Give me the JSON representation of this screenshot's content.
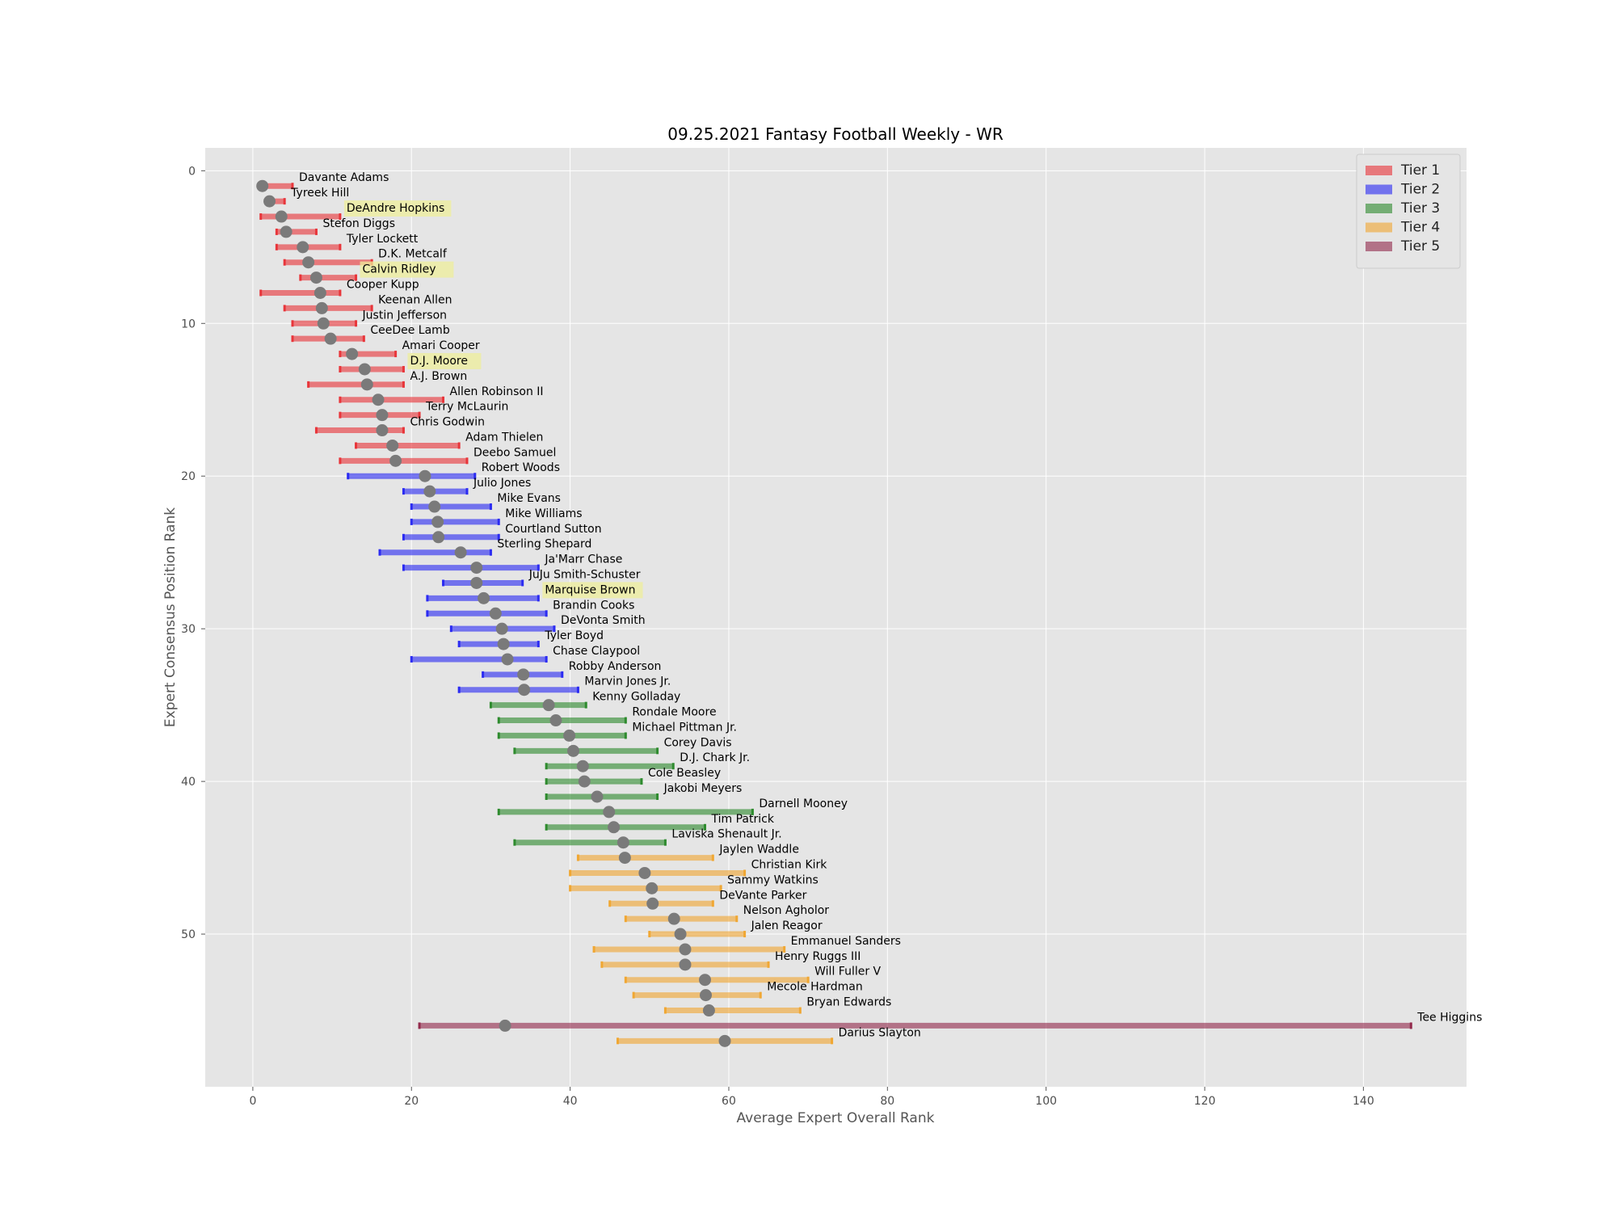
{
  "chart_data": {
    "type": "dot-range",
    "title": "09.25.2021 Fantasy Football Weekly - WR",
    "xlabel": "Average Expert Overall Rank",
    "ylabel": "Expert Consensus Position Rank",
    "xlim": [
      -6,
      153
    ],
    "ylim": [
      60,
      -1.5
    ],
    "xticks": [
      0,
      20,
      40,
      60,
      80,
      100,
      120,
      140
    ],
    "yticks": [
      0,
      10,
      20,
      30,
      40,
      50
    ],
    "grid": true,
    "legend_position": "top-right",
    "tiers": [
      {
        "name": "Tier 1",
        "color": "#e8353a"
      },
      {
        "name": "Tier 2",
        "color": "#2b2bf2"
      },
      {
        "name": "Tier 3",
        "color": "#2e8b2e"
      },
      {
        "name": "Tier 4",
        "color": "#f0a733"
      },
      {
        "name": "Tier 5",
        "color": "#932b4d"
      }
    ],
    "marker_color": "#7a7a7a",
    "highlight_color": "#eeee99",
    "players": [
      {
        "name": "Davante Adams",
        "rank": 1,
        "avg": 1.2,
        "min": 1,
        "max": 5,
        "tier": 1,
        "highlight": false
      },
      {
        "name": "Tyreek Hill",
        "rank": 2,
        "avg": 2.1,
        "min": 2,
        "max": 4,
        "tier": 1,
        "highlight": false
      },
      {
        "name": "DeAndre Hopkins",
        "rank": 3,
        "avg": 3.6,
        "min": 1,
        "max": 11,
        "tier": 1,
        "highlight": true
      },
      {
        "name": "Stefon Diggs",
        "rank": 4,
        "avg": 4.2,
        "min": 3,
        "max": 8,
        "tier": 1,
        "highlight": false
      },
      {
        "name": "Tyler Lockett",
        "rank": 5,
        "avg": 6.3,
        "min": 3,
        "max": 11,
        "tier": 1,
        "highlight": false
      },
      {
        "name": "D.K. Metcalf",
        "rank": 6,
        "avg": 7.0,
        "min": 4,
        "max": 15,
        "tier": 1,
        "highlight": false
      },
      {
        "name": "Calvin Ridley",
        "rank": 7,
        "avg": 8.0,
        "min": 6,
        "max": 13,
        "tier": 1,
        "highlight": true
      },
      {
        "name": "Cooper Kupp",
        "rank": 8,
        "avg": 8.5,
        "min": 1,
        "max": 11,
        "tier": 1,
        "highlight": false
      },
      {
        "name": "Keenan Allen",
        "rank": 9,
        "avg": 8.7,
        "min": 4,
        "max": 15,
        "tier": 1,
        "highlight": false
      },
      {
        "name": "Justin Jefferson",
        "rank": 10,
        "avg": 8.9,
        "min": 5,
        "max": 13,
        "tier": 1,
        "highlight": false
      },
      {
        "name": "CeeDee Lamb",
        "rank": 11,
        "avg": 9.8,
        "min": 5,
        "max": 14,
        "tier": 1,
        "highlight": false
      },
      {
        "name": "Amari Cooper",
        "rank": 12,
        "avg": 12.5,
        "min": 11,
        "max": 18,
        "tier": 1,
        "highlight": false
      },
      {
        "name": "D.J. Moore",
        "rank": 13,
        "avg": 14.1,
        "min": 11,
        "max": 19,
        "tier": 1,
        "highlight": true
      },
      {
        "name": "A.J. Brown",
        "rank": 14,
        "avg": 14.4,
        "min": 7,
        "max": 19,
        "tier": 1,
        "highlight": false
      },
      {
        "name": "Allen Robinson II",
        "rank": 15,
        "avg": 15.8,
        "min": 11,
        "max": 24,
        "tier": 1,
        "highlight": false
      },
      {
        "name": "Terry McLaurin",
        "rank": 16,
        "avg": 16.3,
        "min": 11,
        "max": 21,
        "tier": 1,
        "highlight": false
      },
      {
        "name": "Chris Godwin",
        "rank": 17,
        "avg": 16.3,
        "min": 8,
        "max": 19,
        "tier": 1,
        "highlight": false
      },
      {
        "name": "Adam Thielen",
        "rank": 18,
        "avg": 17.6,
        "min": 13,
        "max": 26,
        "tier": 1,
        "highlight": false
      },
      {
        "name": "Deebo Samuel",
        "rank": 19,
        "avg": 18.0,
        "min": 11,
        "max": 27,
        "tier": 1,
        "highlight": false
      },
      {
        "name": "Robert Woods",
        "rank": 20,
        "avg": 21.7,
        "min": 12,
        "max": 28,
        "tier": 2,
        "highlight": false
      },
      {
        "name": "Julio Jones",
        "rank": 21,
        "avg": 22.3,
        "min": 19,
        "max": 27,
        "tier": 2,
        "highlight": false
      },
      {
        "name": "Mike Evans",
        "rank": 22,
        "avg": 22.9,
        "min": 20,
        "max": 30,
        "tier": 2,
        "highlight": false
      },
      {
        "name": "Mike Williams",
        "rank": 23,
        "avg": 23.3,
        "min": 20,
        "max": 31,
        "tier": 2,
        "highlight": false
      },
      {
        "name": "Courtland Sutton",
        "rank": 24,
        "avg": 23.4,
        "min": 19,
        "max": 31,
        "tier": 2,
        "highlight": false
      },
      {
        "name": "Sterling Shepard",
        "rank": 25,
        "avg": 26.2,
        "min": 16,
        "max": 30,
        "tier": 2,
        "highlight": false
      },
      {
        "name": "Ja'Marr Chase",
        "rank": 26,
        "avg": 28.2,
        "min": 19,
        "max": 36,
        "tier": 2,
        "highlight": false
      },
      {
        "name": "JuJu Smith-Schuster",
        "rank": 27,
        "avg": 28.2,
        "min": 24,
        "max": 34,
        "tier": 2,
        "highlight": false
      },
      {
        "name": "Marquise Brown",
        "rank": 28,
        "avg": 29.1,
        "min": 22,
        "max": 36,
        "tier": 2,
        "highlight": true
      },
      {
        "name": "Brandin Cooks",
        "rank": 29,
        "avg": 30.6,
        "min": 22,
        "max": 37,
        "tier": 2,
        "highlight": false
      },
      {
        "name": "DeVonta Smith",
        "rank": 30,
        "avg": 31.4,
        "min": 25,
        "max": 38,
        "tier": 2,
        "highlight": false
      },
      {
        "name": "Tyler Boyd",
        "rank": 31,
        "avg": 31.6,
        "min": 26,
        "max": 36,
        "tier": 2,
        "highlight": false
      },
      {
        "name": "Chase Claypool",
        "rank": 32,
        "avg": 32.1,
        "min": 20,
        "max": 37,
        "tier": 2,
        "highlight": false
      },
      {
        "name": "Robby Anderson",
        "rank": 33,
        "avg": 34.1,
        "min": 29,
        "max": 39,
        "tier": 2,
        "highlight": false
      },
      {
        "name": "Marvin Jones Jr.",
        "rank": 34,
        "avg": 34.2,
        "min": 26,
        "max": 41,
        "tier": 2,
        "highlight": false
      },
      {
        "name": "Kenny Golladay",
        "rank": 35,
        "avg": 37.3,
        "min": 30,
        "max": 42,
        "tier": 3,
        "highlight": false
      },
      {
        "name": "Rondale Moore",
        "rank": 36,
        "avg": 38.2,
        "min": 31,
        "max": 47,
        "tier": 3,
        "highlight": false
      },
      {
        "name": "Michael Pittman Jr.",
        "rank": 37,
        "avg": 39.9,
        "min": 31,
        "max": 47,
        "tier": 3,
        "highlight": false
      },
      {
        "name": "Corey Davis",
        "rank": 38,
        "avg": 40.4,
        "min": 33,
        "max": 51,
        "tier": 3,
        "highlight": false
      },
      {
        "name": "D.J. Chark Jr.",
        "rank": 39,
        "avg": 41.6,
        "min": 37,
        "max": 53,
        "tier": 3,
        "highlight": false
      },
      {
        "name": "Cole Beasley",
        "rank": 40,
        "avg": 41.8,
        "min": 37,
        "max": 49,
        "tier": 3,
        "highlight": false
      },
      {
        "name": "Jakobi Meyers",
        "rank": 41,
        "avg": 43.4,
        "min": 37,
        "max": 51,
        "tier": 3,
        "highlight": false
      },
      {
        "name": "Darnell Mooney",
        "rank": 42,
        "avg": 44.9,
        "min": 31,
        "max": 63,
        "tier": 3,
        "highlight": false
      },
      {
        "name": "Tim Patrick",
        "rank": 43,
        "avg": 45.5,
        "min": 37,
        "max": 57,
        "tier": 3,
        "highlight": false
      },
      {
        "name": "Laviska Shenault Jr.",
        "rank": 44,
        "avg": 46.7,
        "min": 33,
        "max": 52,
        "tier": 3,
        "highlight": false
      },
      {
        "name": "Jaylen Waddle",
        "rank": 45,
        "avg": 46.9,
        "min": 41,
        "max": 58,
        "tier": 4,
        "highlight": false
      },
      {
        "name": "Christian Kirk",
        "rank": 46,
        "avg": 49.4,
        "min": 40,
        "max": 62,
        "tier": 4,
        "highlight": false
      },
      {
        "name": "Sammy Watkins",
        "rank": 47,
        "avg": 50.3,
        "min": 40,
        "max": 59,
        "tier": 4,
        "highlight": false
      },
      {
        "name": "DeVante Parker",
        "rank": 48,
        "avg": 50.4,
        "min": 45,
        "max": 58,
        "tier": 4,
        "highlight": false
      },
      {
        "name": "Nelson Agholor",
        "rank": 49,
        "avg": 53.1,
        "min": 47,
        "max": 61,
        "tier": 4,
        "highlight": false
      },
      {
        "name": "Jalen Reagor",
        "rank": 50,
        "avg": 53.9,
        "min": 50,
        "max": 62,
        "tier": 4,
        "highlight": false
      },
      {
        "name": "Emmanuel Sanders",
        "rank": 51,
        "avg": 54.5,
        "min": 43,
        "max": 67,
        "tier": 4,
        "highlight": false
      },
      {
        "name": "Henry Ruggs III",
        "rank": 52,
        "avg": 54.5,
        "min": 44,
        "max": 65,
        "tier": 4,
        "highlight": false
      },
      {
        "name": "Will Fuller V",
        "rank": 53,
        "avg": 57.0,
        "min": 47,
        "max": 70,
        "tier": 4,
        "highlight": false
      },
      {
        "name": "Mecole Hardman",
        "rank": 54,
        "avg": 57.1,
        "min": 48,
        "max": 64,
        "tier": 4,
        "highlight": false
      },
      {
        "name": "Bryan Edwards",
        "rank": 55,
        "avg": 57.5,
        "min": 52,
        "max": 69,
        "tier": 4,
        "highlight": false
      },
      {
        "name": "Tee Higgins",
        "rank": 56,
        "avg": 31.8,
        "min": 21,
        "max": 146,
        "tier": 5,
        "highlight": false
      },
      {
        "name": "Darius Slayton",
        "rank": 57,
        "avg": 59.5,
        "min": 46,
        "max": 73,
        "tier": 4,
        "highlight": false
      }
    ]
  }
}
